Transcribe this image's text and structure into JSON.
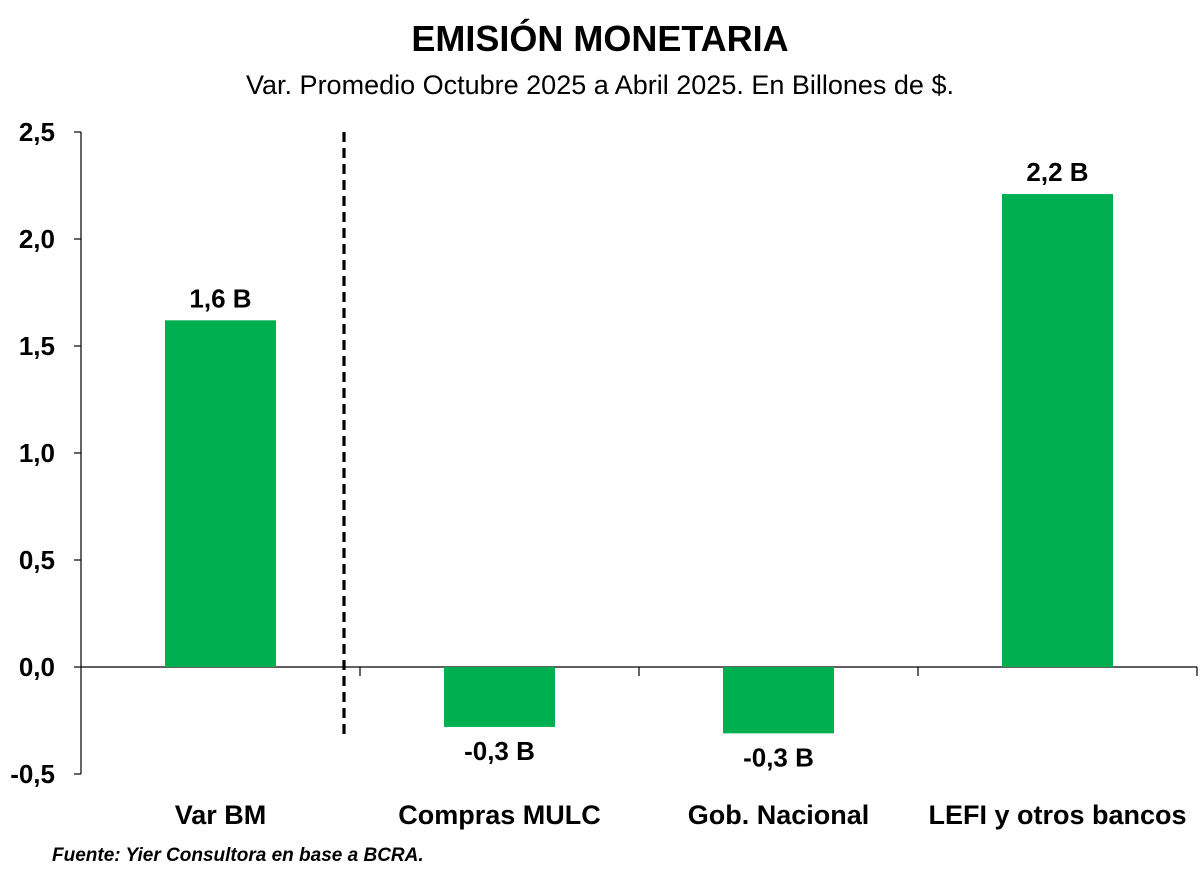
{
  "title": "EMISIÓN MONETARIA",
  "subtitle": "Var. Promedio Octubre 2025 a Abril 2025. En Billones de $.",
  "source": "Fuente: Yier Consultora en base a BCRA.",
  "chart_data": {
    "type": "bar",
    "categories": [
      "Var BM",
      "Compras MULC",
      "Gob. Nacional",
      "LEFI y otros bancos"
    ],
    "values": [
      1.62,
      -0.28,
      -0.31,
      2.21
    ],
    "data_labels": [
      "1,6 B",
      "-0,3 B",
      "-0,3 B",
      "2,2 B"
    ],
    "ylim": [
      -0.5,
      2.5
    ],
    "yticks": [
      2.5,
      2.0,
      1.5,
      1.0,
      0.5,
      0.0,
      -0.5
    ],
    "ytick_labels": [
      "2,5",
      "2,0",
      "1,5",
      "1,0",
      "0,5",
      "0,0",
      "-0,5"
    ],
    "bar_color": "#00b050",
    "separator": "dashed vertical line between Var BM and Compras MULC",
    "grid": false,
    "legend": "none"
  }
}
